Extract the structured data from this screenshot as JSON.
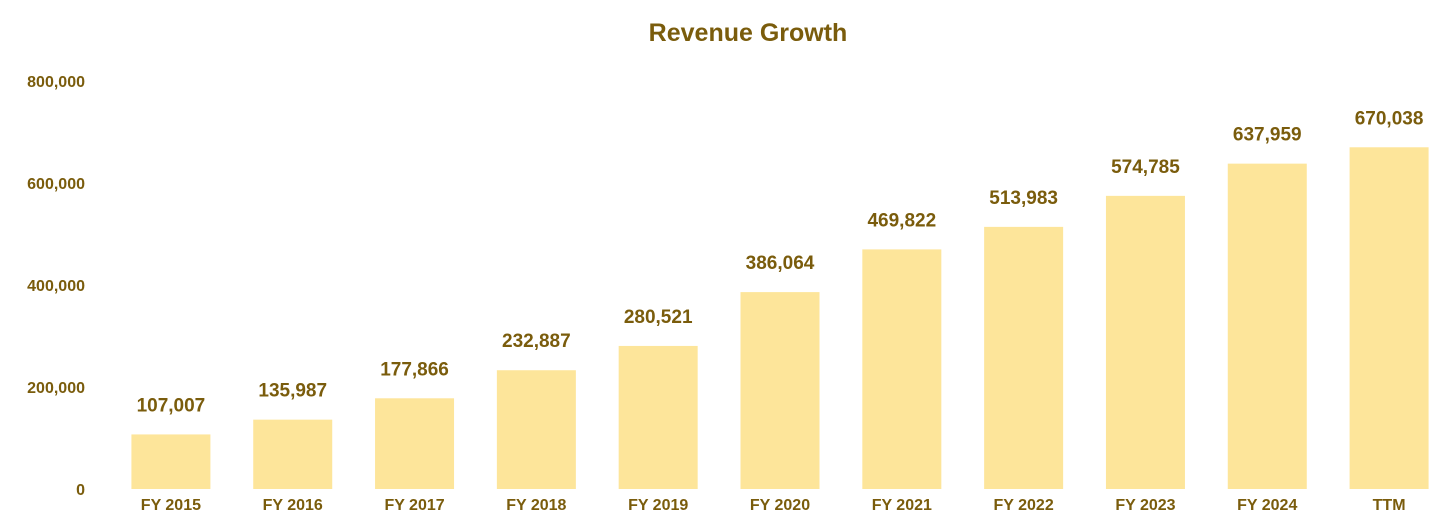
{
  "colors": {
    "bar": "#fde59a",
    "text": "#7a5c0c",
    "background": "#ffffff"
  },
  "chart_data": {
    "type": "bar",
    "title": "Revenue Growth",
    "xlabel": "",
    "ylabel": "",
    "ylim": [
      0,
      800000
    ],
    "yticks": [
      {
        "value": 0,
        "label": "0"
      },
      {
        "value": 200000,
        "label": "200,000"
      },
      {
        "value": 400000,
        "label": "400,000"
      },
      {
        "value": 600000,
        "label": "600,000"
      },
      {
        "value": 800000,
        "label": "800,000"
      }
    ],
    "grid": false,
    "legend": "none",
    "categories": [
      "FY 2015",
      "FY 2016",
      "FY 2017",
      "FY 2018",
      "FY 2019",
      "FY 2020",
      "FY 2021",
      "FY 2022",
      "FY 2023",
      "FY 2024",
      "TTM"
    ],
    "values": [
      107007,
      135987,
      177866,
      232887,
      280521,
      386064,
      469822,
      513983,
      574785,
      637959,
      670038
    ],
    "value_labels": [
      "107,007",
      "135,987",
      "177,866",
      "232,887",
      "280,521",
      "386,064",
      "469,822",
      "513,983",
      "574,785",
      "637,959",
      "670,038"
    ]
  }
}
